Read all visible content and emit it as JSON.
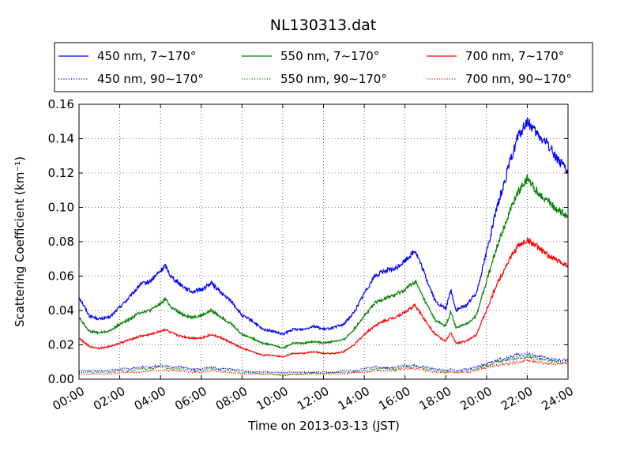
{
  "chart_data": {
    "type": "line",
    "title": "NL130313.dat",
    "xlabel": "Time on 2013-03-13 (JST)",
    "ylabel": "Scattering Coefficient (km⁻¹)",
    "xlim": [
      0,
      24
    ],
    "ylim": [
      0,
      0.16
    ],
    "x_ticks": [
      "00:00",
      "02:00",
      "04:00",
      "06:00",
      "08:00",
      "10:00",
      "12:00",
      "14:00",
      "16:00",
      "18:00",
      "20:00",
      "22:00",
      "24:00"
    ],
    "y_ticks": [
      "0.00",
      "0.02",
      "0.04",
      "0.06",
      "0.08",
      "0.10",
      "0.12",
      "0.14",
      "0.16"
    ],
    "grid": true,
    "legend_position": "top",
    "x_hours": [
      0,
      0.5,
      1,
      1.5,
      2,
      2.5,
      3,
      3.5,
      4,
      4.25,
      4.5,
      5,
      5.5,
      6,
      6.5,
      7,
      7.5,
      8,
      8.5,
      9,
      9.5,
      10,
      10.5,
      11,
      11.5,
      12,
      12.5,
      13,
      13.5,
      14,
      14.5,
      15,
      15.5,
      16,
      16.5,
      17,
      17.5,
      18,
      18.25,
      18.5,
      19,
      19.5,
      20,
      20.5,
      21,
      21.5,
      22,
      22.5,
      23,
      23.5,
      24
    ],
    "series": [
      {
        "name": "450 nm, 7∼170°",
        "color": "#0000ff",
        "style": "solid",
        "values": [
          0.048,
          0.037,
          0.035,
          0.036,
          0.042,
          0.048,
          0.055,
          0.057,
          0.063,
          0.066,
          0.06,
          0.055,
          0.051,
          0.052,
          0.056,
          0.05,
          0.045,
          0.037,
          0.034,
          0.029,
          0.028,
          0.026,
          0.029,
          0.029,
          0.031,
          0.029,
          0.03,
          0.032,
          0.039,
          0.05,
          0.06,
          0.063,
          0.064,
          0.069,
          0.075,
          0.06,
          0.045,
          0.041,
          0.052,
          0.04,
          0.043,
          0.05,
          0.074,
          0.099,
          0.12,
          0.14,
          0.15,
          0.142,
          0.137,
          0.128,
          0.12
        ]
      },
      {
        "name": "550 nm, 7∼170°",
        "color": "#008000",
        "style": "solid",
        "values": [
          0.036,
          0.028,
          0.027,
          0.028,
          0.032,
          0.035,
          0.039,
          0.04,
          0.044,
          0.047,
          0.042,
          0.038,
          0.036,
          0.037,
          0.04,
          0.036,
          0.032,
          0.026,
          0.024,
          0.021,
          0.02,
          0.018,
          0.021,
          0.021,
          0.022,
          0.021,
          0.022,
          0.023,
          0.029,
          0.037,
          0.044,
          0.047,
          0.049,
          0.052,
          0.057,
          0.045,
          0.034,
          0.031,
          0.039,
          0.03,
          0.032,
          0.037,
          0.057,
          0.077,
          0.093,
          0.108,
          0.117,
          0.109,
          0.104,
          0.098,
          0.095
        ]
      },
      {
        "name": "700 nm, 7∼170°",
        "color": "#ff0000",
        "style": "solid",
        "values": [
          0.024,
          0.019,
          0.018,
          0.019,
          0.021,
          0.023,
          0.025,
          0.026,
          0.028,
          0.029,
          0.027,
          0.025,
          0.024,
          0.024,
          0.026,
          0.024,
          0.021,
          0.018,
          0.016,
          0.014,
          0.014,
          0.013,
          0.015,
          0.015,
          0.016,
          0.015,
          0.015,
          0.016,
          0.02,
          0.026,
          0.031,
          0.034,
          0.036,
          0.039,
          0.043,
          0.034,
          0.026,
          0.022,
          0.027,
          0.021,
          0.022,
          0.026,
          0.04,
          0.055,
          0.067,
          0.077,
          0.081,
          0.077,
          0.072,
          0.069,
          0.066
        ]
      },
      {
        "name": "450 nm, 90∼170°",
        "color": "#0000ff",
        "style": "dotted",
        "values": [
          0.005,
          0.005,
          0.005,
          0.005,
          0.006,
          0.006,
          0.007,
          0.007,
          0.008,
          0.008,
          0.007,
          0.007,
          0.006,
          0.006,
          0.007,
          0.006,
          0.006,
          0.005,
          0.004,
          0.004,
          0.004,
          0.004,
          0.004,
          0.004,
          0.004,
          0.004,
          0.004,
          0.005,
          0.005,
          0.006,
          0.007,
          0.007,
          0.007,
          0.008,
          0.008,
          0.007,
          0.006,
          0.005,
          0.006,
          0.005,
          0.006,
          0.007,
          0.009,
          0.011,
          0.012,
          0.014,
          0.015,
          0.013,
          0.012,
          0.011,
          0.011
        ]
      },
      {
        "name": "550 nm, 90∼170°",
        "color": "#008000",
        "style": "dotted",
        "values": [
          0.004,
          0.004,
          0.004,
          0.004,
          0.005,
          0.005,
          0.006,
          0.006,
          0.007,
          0.007,
          0.006,
          0.006,
          0.005,
          0.005,
          0.006,
          0.005,
          0.005,
          0.004,
          0.004,
          0.003,
          0.003,
          0.003,
          0.003,
          0.003,
          0.004,
          0.003,
          0.004,
          0.004,
          0.004,
          0.005,
          0.006,
          0.006,
          0.006,
          0.007,
          0.007,
          0.006,
          0.005,
          0.004,
          0.005,
          0.004,
          0.005,
          0.006,
          0.008,
          0.01,
          0.011,
          0.012,
          0.013,
          0.012,
          0.011,
          0.01,
          0.01
        ]
      },
      {
        "name": "700 nm, 90∼170°",
        "color": "#ff0000",
        "style": "dotted",
        "values": [
          0.003,
          0.003,
          0.003,
          0.003,
          0.004,
          0.004,
          0.004,
          0.005,
          0.005,
          0.005,
          0.005,
          0.005,
          0.004,
          0.004,
          0.005,
          0.004,
          0.004,
          0.003,
          0.003,
          0.003,
          0.003,
          0.002,
          0.003,
          0.003,
          0.003,
          0.003,
          0.003,
          0.003,
          0.004,
          0.004,
          0.005,
          0.005,
          0.005,
          0.006,
          0.006,
          0.005,
          0.004,
          0.004,
          0.004,
          0.004,
          0.004,
          0.005,
          0.007,
          0.008,
          0.009,
          0.01,
          0.011,
          0.01,
          0.009,
          0.009,
          0.009
        ]
      }
    ]
  }
}
